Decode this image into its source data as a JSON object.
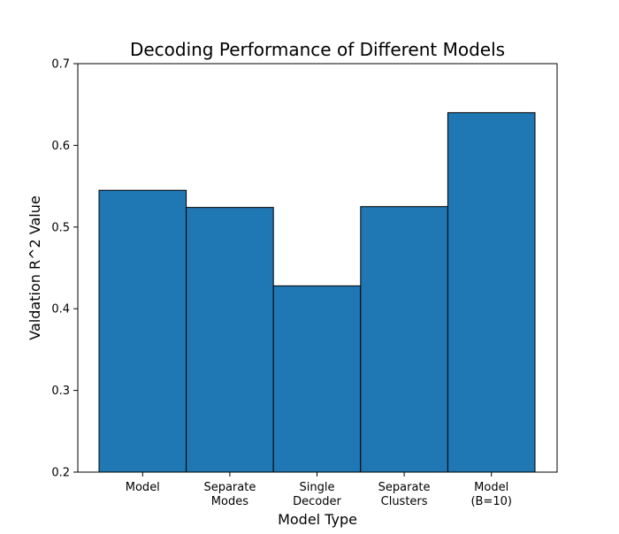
{
  "chart_data": {
    "type": "bar",
    "title": "Decoding Performance of Different Models",
    "xlabel": "Model Type",
    "ylabel": "Valdation R^2 Value",
    "categories": [
      [
        "Model"
      ],
      [
        "Separate",
        "Modes"
      ],
      [
        "Single",
        "Decoder"
      ],
      [
        "Separate",
        "Clusters"
      ],
      [
        "Model",
        "(B=10)"
      ]
    ],
    "values": [
      0.545,
      0.524,
      0.428,
      0.525,
      0.64
    ],
    "ylim": [
      0.2,
      0.7
    ],
    "yticks": [
      "0.2",
      "0.3",
      "0.4",
      "0.5",
      "0.6",
      "0.7"
    ],
    "grid": false,
    "bar_color": "#1f77b4",
    "edge_color": "#000000"
  }
}
